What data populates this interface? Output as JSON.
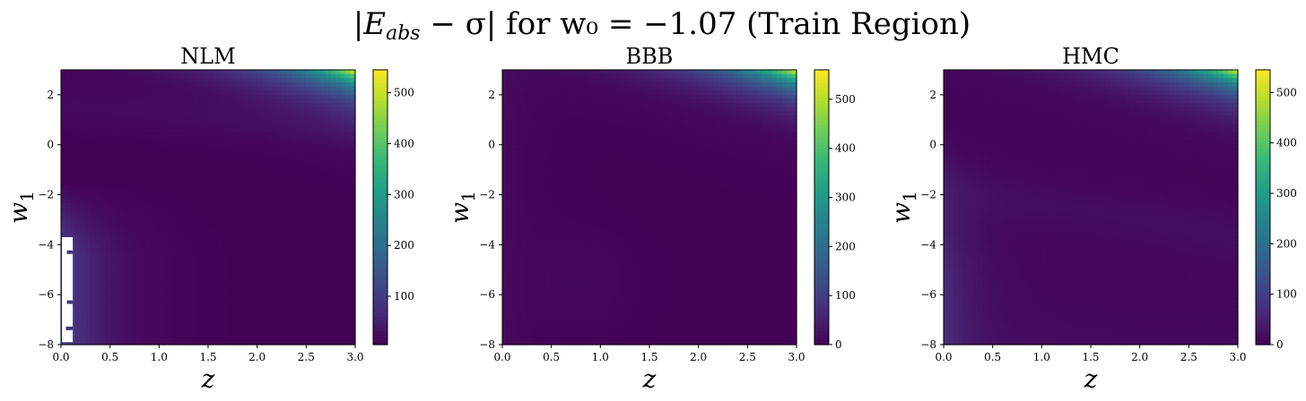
{
  "figure": {
    "suptitle": "|E_abs − σ| for w₀ = −1.07 (Train Region)"
  },
  "chart_data": [
    {
      "type": "heatmap",
      "title": "NLM",
      "xlabel": "z",
      "ylabel": "w_1",
      "xlim": [
        0.0,
        3.0
      ],
      "ylim": [
        -8,
        3
      ],
      "x_ticks": [
        "0.0",
        "0.5",
        "1.0",
        "1.5",
        "2.0",
        "2.5",
        "3.0"
      ],
      "y_ticks": [
        "-8",
        "-6",
        "-4",
        "-2",
        "0",
        "2"
      ],
      "colorbar": {
        "min": 5,
        "max": 545,
        "ticks": [
          "100",
          "200",
          "300",
          "400",
          "500"
        ]
      },
      "colormap": "viridis",
      "grid": false,
      "features": [
        {
          "desc": "high values at top-right corner",
          "z": 3.0,
          "w1": 3.0,
          "value": 545
        },
        {
          "desc": "moderate values along left edge",
          "z": 0.0,
          "w1": -6,
          "value": 110
        },
        {
          "desc": "undefined (white) region",
          "z_range": [
            0.0,
            0.12
          ],
          "w1_range": [
            -7.9,
            -3.7
          ]
        }
      ]
    },
    {
      "type": "heatmap",
      "title": "BBB",
      "xlabel": "z",
      "ylabel": "w_1",
      "xlim": [
        0.0,
        3.0
      ],
      "ylim": [
        -8,
        3
      ],
      "x_ticks": [
        "0.0",
        "0.5",
        "1.0",
        "1.5",
        "2.0",
        "2.5",
        "3.0"
      ],
      "y_ticks": [
        "-8",
        "-6",
        "-4",
        "-2",
        "0",
        "2"
      ],
      "colorbar": {
        "min": 0,
        "max": 560,
        "ticks": [
          "0",
          "100",
          "200",
          "300",
          "400",
          "500"
        ]
      },
      "colormap": "viridis",
      "grid": false,
      "features": [
        {
          "desc": "high values at top-right corner",
          "z": 3.0,
          "w1": 3.0,
          "value": 560
        },
        {
          "desc": "low values elsewhere",
          "value": 15
        }
      ]
    },
    {
      "type": "heatmap",
      "title": "HMC",
      "xlabel": "z",
      "ylabel": "w_1",
      "xlim": [
        0.0,
        3.0
      ],
      "ylim": [
        -8,
        3
      ],
      "x_ticks": [
        "0.0",
        "0.5",
        "1.0",
        "1.5",
        "2.0",
        "2.5",
        "3.0"
      ],
      "y_ticks": [
        "-8",
        "-6",
        "-4",
        "-2",
        "0",
        "2"
      ],
      "colorbar": {
        "min": 0,
        "max": 545,
        "ticks": [
          "0",
          "100",
          "200",
          "300",
          "400",
          "500"
        ]
      },
      "colormap": "viridis",
      "grid": false,
      "features": [
        {
          "desc": "high values at top-right corner",
          "z": 3.0,
          "w1": 3.0,
          "value": 545
        },
        {
          "desc": "moderate values along left edge",
          "z": 0.0,
          "w1": -6,
          "value": 60
        }
      ]
    }
  ]
}
